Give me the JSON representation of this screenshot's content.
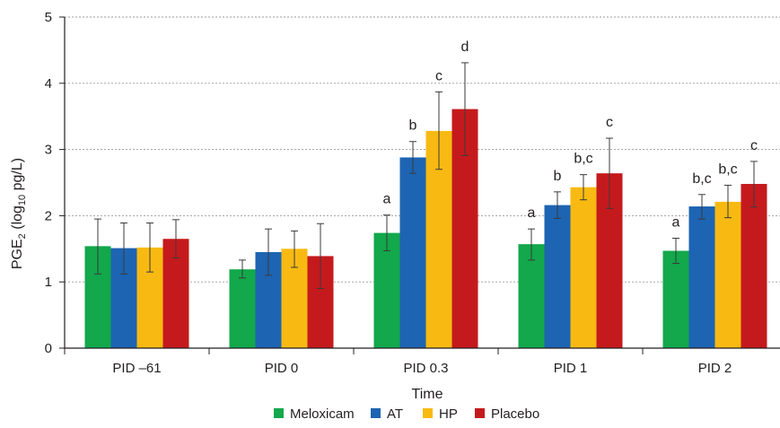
{
  "chart_data": {
    "type": "bar",
    "title": "",
    "xlabel": "Time",
    "ylabel": {
      "main": "PGE",
      "main_sub": "2",
      "open": " (log",
      "unit_sub": "10",
      "close": " pg/L)"
    },
    "ylim": [
      0,
      5
    ],
    "yticks": [
      0,
      1,
      2,
      3,
      4,
      5
    ],
    "grid": true,
    "legend_position": "bottom",
    "categories": [
      "PID –61",
      "PID 0",
      "PID 0.3",
      "PID 1",
      "PID 2"
    ],
    "series": [
      {
        "name": "Meloxicam",
        "color": "#12a84b",
        "values": [
          1.54,
          1.19,
          1.74,
          1.57,
          1.47
        ],
        "err_low": [
          1.12,
          1.06,
          1.47,
          1.33,
          1.28
        ],
        "err_high": [
          1.95,
          1.33,
          2.01,
          1.8,
          1.66
        ],
        "labels": [
          "",
          "",
          "a",
          "a",
          "a"
        ]
      },
      {
        "name": "AT",
        "color": "#1d64b2",
        "values": [
          1.51,
          1.45,
          2.88,
          2.16,
          2.14
        ],
        "err_low": [
          1.12,
          1.1,
          2.64,
          1.96,
          1.95
        ],
        "err_high": [
          1.89,
          1.8,
          3.12,
          2.36,
          2.32
        ],
        "labels": [
          "",
          "",
          "b",
          "b",
          "b,c"
        ]
      },
      {
        "name": "HP",
        "color": "#f8ba12",
        "values": [
          1.52,
          1.5,
          3.28,
          2.43,
          2.21
        ],
        "err_low": [
          1.15,
          1.22,
          2.7,
          2.24,
          1.97
        ],
        "err_high": [
          1.89,
          1.77,
          3.87,
          2.62,
          2.46
        ],
        "labels": [
          "",
          "",
          "c",
          "b,c",
          "b,c"
        ]
      },
      {
        "name": "Placebo",
        "color": "#c51a1d",
        "values": [
          1.65,
          1.39,
          3.61,
          2.64,
          2.48
        ],
        "err_low": [
          1.36,
          0.9,
          2.91,
          2.11,
          2.13
        ],
        "err_high": [
          1.94,
          1.88,
          4.31,
          3.17,
          2.82
        ],
        "labels": [
          "",
          "",
          "d",
          "c",
          "c"
        ]
      }
    ]
  }
}
